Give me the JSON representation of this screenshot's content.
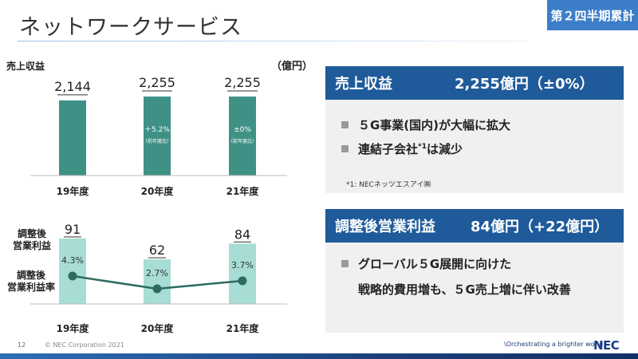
{
  "header": {
    "title": "ネットワークサービス",
    "period_badge": "第２四半期累計"
  },
  "revenue_chart_label": "売上収益",
  "unit_label": "（億円）",
  "profit_labels": {
    "profit": "調整後\n営業利益",
    "margin": "調整後\n営業利益率"
  },
  "chart_data": [
    {
      "type": "bar",
      "title": "売上収益",
      "ylabel": "（億円）",
      "categories": [
        "19年度",
        "20年度",
        "21年度"
      ],
      "values": [
        2144,
        2255,
        2255
      ],
      "value_labels": [
        "2,144",
        "2,255",
        "2,255"
      ],
      "annotations": [
        null,
        {
          "change": "＋5.2%",
          "note": "（前年度比）"
        },
        {
          "change": "±0%",
          "note": "（前年度比）"
        }
      ],
      "color": "#3f9186"
    },
    {
      "type": "bar",
      "title": "調整後 営業利益",
      "categories": [
        "19年度",
        "20年度",
        "21年度"
      ],
      "values": [
        91,
        62,
        84
      ],
      "value_labels": [
        "91",
        "62",
        "84"
      ],
      "color": "#a7ddd4",
      "overlay_line": {
        "name": "調整後 営業利益率",
        "values": [
          4.3,
          2.7,
          3.7
        ],
        "labels": [
          "4.3%",
          "2.7%",
          "3.7%"
        ],
        "color": "#2d6b5f"
      }
    }
  ],
  "panel_revenue": {
    "title": "売上収益",
    "value": "2,255億円（±0%）",
    "bullets": [
      "５G事業(国内)が大幅に拡大",
      "連結子会社*1は減少"
    ],
    "bullet2_parts": {
      "before": "連結子会社",
      "sup": "*1",
      "after": "は減少"
    },
    "footnote": "*1: NECネッツエスアイ㈱"
  },
  "panel_profit": {
    "title": "調整後営業利益",
    "value": "84億円（+22億円）",
    "bullets": [
      "グローバル５G展開に向けた",
      "戦略的費用増も、５G売上増に伴い改善"
    ]
  },
  "footer": {
    "page_number": "12",
    "copyright": "© NEC Corporation 2021",
    "tagline": "\\Orchestrating a brighter world",
    "logo": "NEC"
  },
  "colors": {
    "accent_blue": "#1f5a9a",
    "badge_blue": "#3d7ec9",
    "bar_revenue": "#3f9186",
    "bar_profit": "#a7ddd4"
  }
}
